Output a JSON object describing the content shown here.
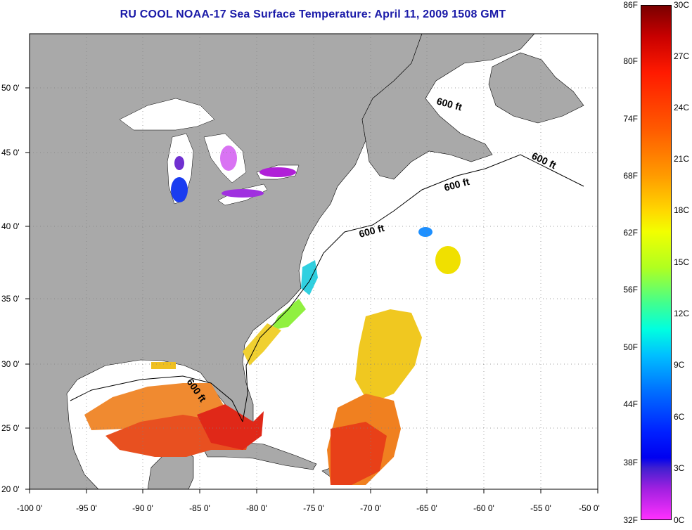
{
  "title": "RU COOL  NOAA-17  Sea Surface Temperature:  April 11, 2009 1508 GMT",
  "axes": {
    "x_ticks": [
      "-100 0'",
      "-95 0'",
      "-90 0'",
      "-85 0'",
      "-80 0'",
      "-75 0'",
      "-70 0'",
      "-65 0'",
      "-60 0'",
      "-55 0'",
      "-50 0'"
    ],
    "y_ticks": [
      "50 0'",
      "45 0'",
      "40 0'",
      "35 0'",
      "30 0'",
      "25 0'",
      "20 0'"
    ],
    "lon_range": [
      -100,
      -50
    ],
    "lat_range": [
      20,
      52.5
    ]
  },
  "contour_labels": [
    "600 ft",
    "600 ft",
    "600 ft",
    "600 ft",
    "600 ft"
  ],
  "colorbar": {
    "fahrenheit": [
      "86F",
      "80F",
      "74F",
      "68F",
      "62F",
      "56F",
      "50F",
      "44F",
      "38F",
      "32F"
    ],
    "celsius": [
      "30C",
      "27C",
      "24C",
      "21C",
      "18C",
      "15C",
      "12C",
      "9C",
      "6C",
      "3C",
      "0C"
    ],
    "range_c": [
      0,
      30
    ]
  },
  "colors": {
    "land": "#a9a9a9",
    "ocean": "#ffffff",
    "title": "#1a1aa8",
    "warm": "#e8401a",
    "cool": "#1e90ff"
  }
}
